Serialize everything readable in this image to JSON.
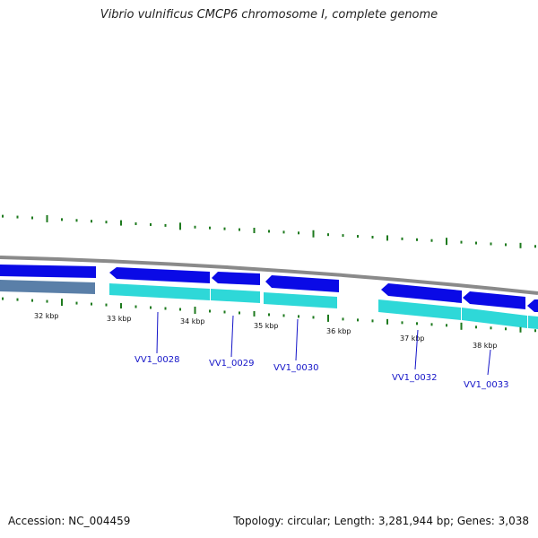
{
  "title": "Vibrio vulnificus CMCP6 chromosome I, complete genome",
  "footer": {
    "accession": "Accession: NC_004459",
    "summary": "Topology: circular; Length: 3,281,944 bp; Genes: 3,038"
  },
  "colors": {
    "backbone": "#8a8a8a",
    "gene_forward": "#0a0ae6",
    "gene_reverse_light": "#2ed8d8",
    "gene_reverse_dark": "#5a7fa8",
    "label": "#1414c8",
    "tick": "#1e7a1e"
  },
  "scale_labels": [
    "32 kbp",
    "33 kbp",
    "34 kbp",
    "35 kbp",
    "36 kbp",
    "37 kbp",
    "38 kbp"
  ],
  "gene_labels": [
    "VV1_0028",
    "VV1_0029",
    "VV1_0030",
    "VV1_0032",
    "VV1_0033"
  ]
}
